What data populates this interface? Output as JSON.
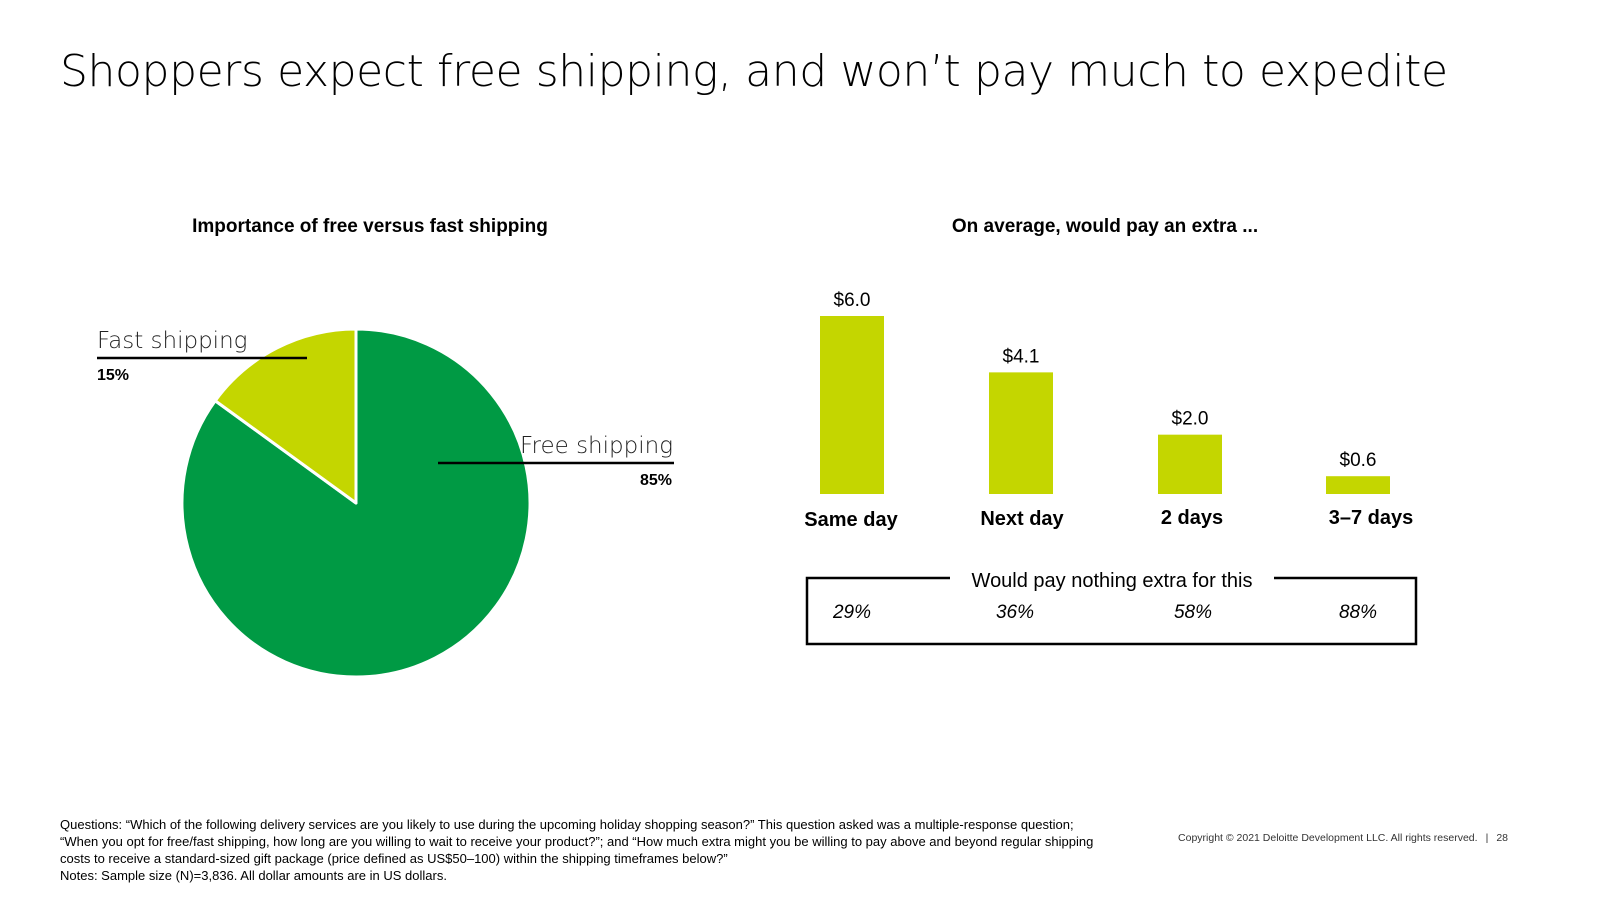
{
  "title": "Shoppers expect free shipping, and won’t pay much to expedite",
  "chart_data": [
    {
      "type": "pie",
      "title": "Importance of free versus fast shipping",
      "slices": [
        {
          "label": "Free shipping",
          "value": 85,
          "value_label": "85%",
          "color": "#009A44"
        },
        {
          "label": "Fast shipping",
          "value": 15,
          "value_label": "15%",
          "color": "#C4D600"
        }
      ]
    },
    {
      "type": "bar",
      "title": "On average, would pay an extra ...",
      "categories": [
        "Same day",
        "Next day",
        "2 days",
        "3–7 days"
      ],
      "values": [
        6.0,
        4.1,
        2.0,
        0.6
      ],
      "value_labels": [
        "$6.0",
        "$4.1",
        "$2.0",
        "$0.6"
      ],
      "color": "#C4D600",
      "ylim": [
        0,
        6.0
      ],
      "table": {
        "title": "Would pay nothing extra for this",
        "values": [
          "29%",
          "36%",
          "58%",
          "88%"
        ]
      }
    }
  ],
  "footnote": {
    "questions": "Questions: “Which of the following delivery services are you likely to use during the upcoming holiday shopping season?” This question asked was a multiple-response question; “When you opt for free/fast shipping, how long are you willing to wait to receive your product?”; and “How much extra might you be willing to pay above and beyond regular shipping costs to receive a standard-sized gift package (price defined as US$50–100) within the shipping timeframes below?”",
    "notes": "Notes: Sample size (N)=3,836. All dollar amounts are in US dollars."
  },
  "copyright": "Copyright © 2021 Deloitte Development LLC. All rights reserved.",
  "separator": "|",
  "page_number": "28"
}
